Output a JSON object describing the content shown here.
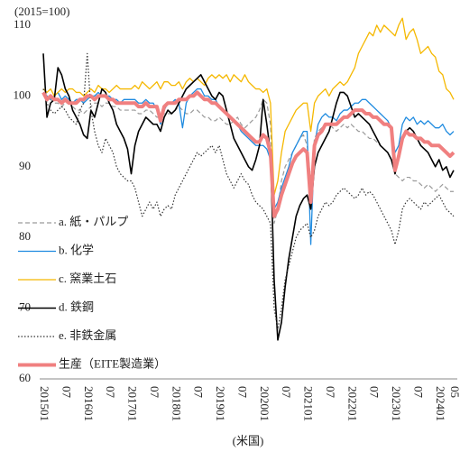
{
  "chart_data": {
    "type": "line",
    "y_label": "(2015=100)",
    "x_label": "(米国)",
    "ylim": [
      60,
      112
    ],
    "yticks": [
      60,
      70,
      80,
      90,
      100,
      110
    ],
    "grid": false,
    "legend": "lower left",
    "categories": [
      "201501",
      null,
      null,
      null,
      null,
      null,
      "07",
      null,
      null,
      null,
      null,
      null,
      "201601",
      null,
      null,
      null,
      null,
      null,
      "07",
      null,
      null,
      null,
      null,
      null,
      "201701",
      null,
      null,
      null,
      null,
      null,
      "07",
      null,
      null,
      null,
      null,
      null,
      "201801",
      null,
      null,
      null,
      null,
      null,
      "07",
      null,
      null,
      null,
      null,
      null,
      "201901",
      null,
      null,
      null,
      null,
      null,
      "07",
      null,
      null,
      null,
      null,
      null,
      "202001",
      null,
      null,
      null,
      null,
      null,
      "07",
      null,
      null,
      null,
      null,
      null,
      "202101",
      null,
      null,
      null,
      null,
      null,
      "07",
      null,
      null,
      null,
      null,
      null,
      "202201",
      null,
      null,
      null,
      null,
      null,
      "07",
      null,
      null,
      null,
      null,
      null,
      "202301",
      null,
      null,
      null,
      null,
      null,
      "07",
      null,
      null,
      null,
      null,
      null,
      "202401",
      null,
      null,
      null,
      "05"
    ],
    "series": [
      {
        "name": "a. 紙・パルプ",
        "color": "#9a9a9a",
        "line_style": "dashed",
        "line_width": 1.2,
        "values": [
          100,
          100,
          99.5,
          99,
          99,
          98.5,
          99,
          99,
          98.5,
          98,
          98,
          97.5,
          98,
          98.5,
          99,
          99,
          98.5,
          99,
          99,
          98.5,
          98.5,
          98,
          98,
          98,
          98,
          98,
          97.5,
          97.5,
          98,
          98,
          97.5,
          97,
          97,
          97.5,
          97.5,
          97.5,
          98,
          98.5,
          98,
          97.5,
          97.5,
          98,
          98,
          97.5,
          97,
          97,
          96.5,
          96.5,
          97,
          96.5,
          96,
          96,
          96.5,
          97,
          96,
          95.5,
          96,
          96.5,
          97,
          98,
          99.5,
          99,
          96,
          82,
          84,
          88,
          90,
          91,
          92,
          93,
          94,
          94.5,
          93,
          88,
          94,
          95,
          95.5,
          96,
          96,
          95.5,
          95,
          95.5,
          96,
          95.5,
          96,
          95.5,
          95,
          95,
          94.5,
          94,
          94,
          93.5,
          93,
          92.5,
          92,
          91,
          89,
          88.5,
          88,
          88.5,
          88.5,
          88,
          88,
          87.5,
          87,
          87.5,
          87,
          86.5,
          87,
          87.5,
          87,
          86.5,
          86.5
        ]
      },
      {
        "name": "b. 化学",
        "color": "#1f8be0",
        "line_style": "solid",
        "line_width": 1.3,
        "values": [
          100.5,
          100,
          99.5,
          100,
          100.5,
          99.5,
          100,
          99.5,
          99,
          99.5,
          99.5,
          99,
          99.5,
          100,
          100,
          100.5,
          100,
          100,
          100,
          99.5,
          99.5,
          99,
          99.5,
          99.5,
          99.5,
          99.5,
          99,
          99,
          99.5,
          99,
          99,
          98,
          96,
          98,
          99,
          99,
          99.5,
          99,
          95.5,
          99,
          100,
          100.5,
          101,
          101,
          100,
          100,
          99.5,
          99.5,
          98.5,
          98,
          97.5,
          97,
          96.5,
          96,
          95,
          94.5,
          94,
          93.5,
          93,
          93,
          93,
          92.5,
          91,
          84,
          85,
          87,
          88.5,
          90,
          92,
          93,
          94,
          95,
          95,
          79,
          93,
          96,
          97,
          97.5,
          97,
          97,
          96.5,
          97.5,
          98,
          98,
          98.5,
          99,
          99,
          99.5,
          99.5,
          99,
          98.5,
          98,
          97.5,
          97,
          96.5,
          95.5,
          92,
          93,
          96,
          97,
          96.5,
          97,
          96,
          96.5,
          96,
          96.5,
          96,
          95.5,
          95.5,
          96,
          95,
          94.5,
          95
        ]
      },
      {
        "name": "c. 窯業土石",
        "color": "#f5b800",
        "line_style": "solid",
        "line_width": 1.3,
        "values": [
          101,
          100.5,
          101,
          100,
          100.5,
          101,
          100.5,
          101,
          101,
          100.5,
          100.5,
          100,
          100.5,
          101,
          100.5,
          101.5,
          101,
          101,
          100.5,
          101,
          101.5,
          101,
          101,
          101,
          101,
          101.5,
          101,
          102,
          101.5,
          101,
          101.5,
          102,
          101,
          102,
          102,
          101.5,
          101.5,
          102,
          101,
          102,
          102.5,
          102,
          102.5,
          102,
          101.5,
          102.5,
          103,
          102.5,
          103,
          102.5,
          103,
          102,
          103,
          102.5,
          102,
          103,
          102,
          101.5,
          101,
          101,
          100.5,
          101,
          99,
          86,
          88,
          92,
          95,
          96,
          97,
          98,
          98.5,
          99,
          99,
          95,
          99,
          100,
          100.5,
          101,
          100,
          101,
          101.5,
          102,
          101.5,
          102,
          103,
          104,
          106,
          107,
          108,
          109,
          108.5,
          110,
          109,
          110,
          109.5,
          109,
          108.5,
          110,
          111,
          108,
          109,
          109.5,
          108,
          106,
          106.5,
          107,
          106,
          105.5,
          103.5,
          103,
          101,
          100.5,
          99.5
        ]
      },
      {
        "name": "d. 鉄鋼",
        "color": "#000000",
        "line_style": "solid",
        "line_width": 1.6,
        "values": [
          106,
          97,
          99,
          99.5,
          104,
          103,
          101,
          100,
          98,
          97,
          96,
          94.5,
          94,
          98,
          97,
          99,
          101,
          100.5,
          99,
          98,
          96,
          95,
          94,
          92.5,
          89,
          93,
          95,
          96,
          97,
          96.5,
          96,
          96,
          95,
          97,
          98,
          97.5,
          98,
          99,
          100,
          101,
          101.5,
          102,
          102.5,
          103,
          102,
          101,
          100,
          99.5,
          100.5,
          100,
          98,
          96,
          94,
          93,
          92,
          91,
          90,
          89.5,
          91,
          93,
          99.5,
          96,
          92,
          74,
          65.5,
          68,
          73,
          77,
          80,
          83,
          84.5,
          85.5,
          86,
          84,
          90,
          92,
          93,
          94,
          95,
          97,
          99,
          100.5,
          100.5,
          100,
          98.5,
          97,
          97.5,
          97,
          96.5,
          96,
          95,
          94,
          93,
          92.5,
          92,
          91,
          89,
          91.5,
          94,
          95,
          95.5,
          95,
          94,
          93,
          92.5,
          92,
          91,
          90,
          91,
          89.5,
          90,
          88.5,
          89.5
        ]
      },
      {
        "name": "e. 非鉄金属",
        "color": "#333333",
        "line_style": "dotted",
        "line_width": 1.2,
        "values": [
          101,
          99,
          98,
          97.5,
          98,
          98.5,
          98,
          97,
          96.5,
          96,
          98,
          99,
          106,
          98,
          95,
          93,
          92,
          94,
          93,
          92,
          90,
          89,
          88.5,
          88,
          88,
          87,
          85,
          83,
          84,
          85,
          84,
          85,
          83,
          84,
          84.5,
          84,
          86,
          87,
          88,
          89,
          90,
          91,
          92,
          91.5,
          92,
          92.5,
          93,
          92,
          93,
          91,
          89,
          88,
          87,
          88,
          89,
          88,
          87.5,
          86,
          85,
          84.5,
          84,
          83,
          82,
          70,
          67,
          70,
          74,
          76,
          78,
          80,
          81,
          81.5,
          82,
          80,
          81,
          83,
          84,
          85,
          84.5,
          85,
          86,
          86.5,
          87,
          86.5,
          86,
          85.5,
          86,
          87,
          86,
          86.5,
          86,
          85,
          84,
          83,
          82,
          81,
          79,
          81,
          84,
          85,
          85.5,
          85,
          84.5,
          84,
          85,
          84.5,
          85,
          85.5,
          86,
          85,
          84,
          83.5,
          83
        ]
      },
      {
        "name": "生産（EITE製造業）",
        "color": "#f08080",
        "line_style": "solid",
        "line_width": 4,
        "values": [
          100.5,
          99.5,
          100,
          99.5,
          99.5,
          99,
          99.5,
          99,
          99,
          99,
          99.5,
          99.5,
          100,
          100,
          99.5,
          100,
          100,
          100,
          99.5,
          99.5,
          99,
          99,
          99,
          99,
          99,
          99,
          98.5,
          98.5,
          99,
          98.5,
          98.5,
          98.5,
          96.5,
          98.5,
          99,
          99,
          99,
          99.5,
          99.5,
          99.5,
          100,
          100,
          100.5,
          100,
          99.5,
          99.5,
          99,
          99,
          98.5,
          98,
          97.5,
          97,
          96.5,
          96,
          95.5,
          95,
          94.5,
          94,
          93.5,
          93.5,
          94.5,
          94,
          92,
          83,
          84,
          86,
          87.5,
          89,
          90.5,
          91.5,
          92,
          92.5,
          92,
          85,
          93,
          94.5,
          95,
          96,
          96,
          96,
          96,
          96.5,
          97,
          97,
          97.5,
          98,
          98,
          98,
          97.5,
          97.5,
          97,
          97,
          96.5,
          96,
          96,
          95.5,
          89.5,
          91.5,
          94,
          95,
          94.5,
          94.5,
          94,
          94,
          93.5,
          93.5,
          93,
          93,
          93,
          92.5,
          92,
          91.5,
          92
        ]
      }
    ]
  }
}
